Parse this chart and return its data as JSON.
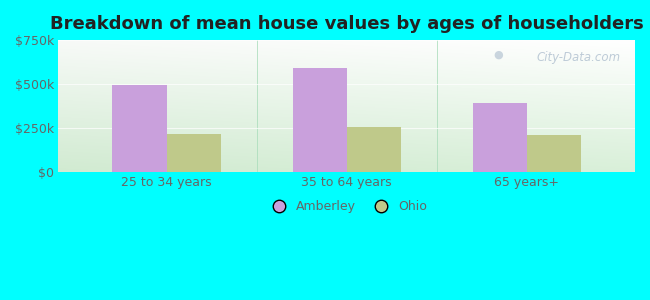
{
  "title": "Breakdown of mean house values by ages of householders",
  "categories": [
    "25 to 34 years",
    "35 to 64 years",
    "65 years+"
  ],
  "amberley_values": [
    497000,
    589000,
    390000
  ],
  "ohio_values": [
    218000,
    253000,
    207000
  ],
  "ylim": [
    0,
    750000
  ],
  "yticks": [
    0,
    250000,
    500000,
    750000
  ],
  "ytick_labels": [
    "$0",
    "$250k",
    "$500k",
    "$750k"
  ],
  "amberley_color": "#c9a0dc",
  "ohio_color": "#bfc98a",
  "bar_width": 0.3,
  "figure_bg": "#00ffff",
  "title_fontsize": 13,
  "tick_color": "#666666",
  "legend_labels": [
    "Amberley",
    "Ohio"
  ],
  "watermark": "City-Data.com"
}
